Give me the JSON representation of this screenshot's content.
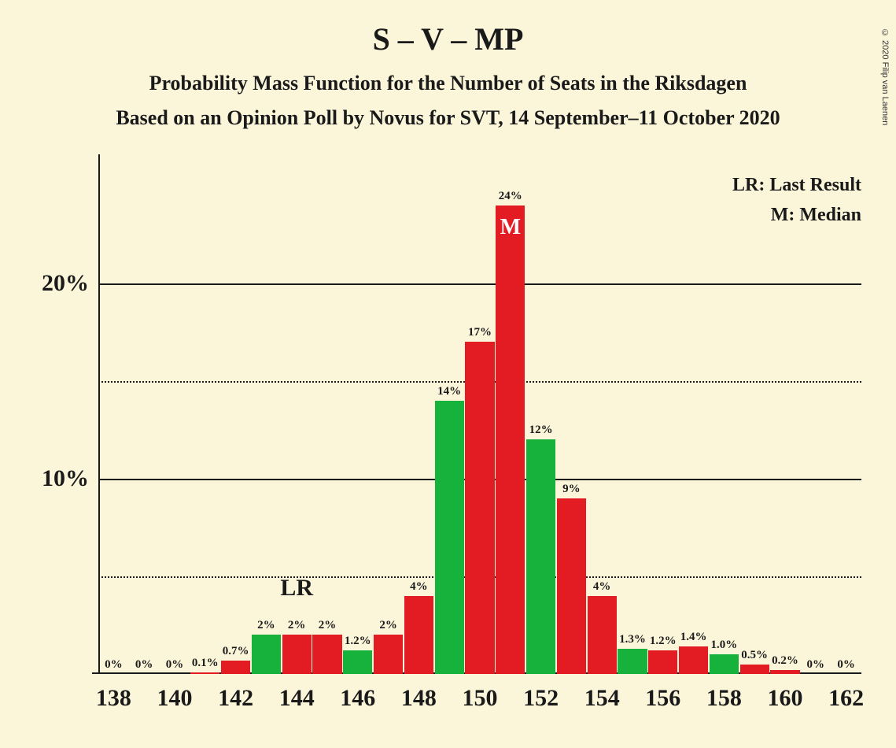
{
  "title": "S – V – MP",
  "subtitle1": "Probability Mass Function for the Number of Seats in the Riksdagen",
  "subtitle2": "Based on an Opinion Poll by Novus for SVT, 14 September–11 October 2020",
  "copyright": "© 2020 Filip van Laenen",
  "legend": {
    "lr": "LR: Last Result",
    "m": "M: Median"
  },
  "title_fontsize": 40,
  "subtitle_fontsize": 26,
  "background_color": "#fbf6da",
  "text_color": "#1a1a1a",
  "chart": {
    "type": "bar",
    "y": {
      "max": 25,
      "ticks": [
        {
          "value": 10,
          "label": "10%",
          "style": "solid"
        },
        {
          "value": 20,
          "label": "20%",
          "style": "solid"
        },
        {
          "value": 5,
          "label": "",
          "style": "dotted"
        },
        {
          "value": 15,
          "label": "",
          "style": "dotted"
        }
      ]
    },
    "x_ticks": [
      "138",
      "140",
      "142",
      "144",
      "146",
      "148",
      "150",
      "152",
      "154",
      "156",
      "158",
      "160",
      "162"
    ],
    "bar_width_ratio": 0.96,
    "colors": {
      "red": "#e31b23",
      "green": "#17b23b"
    },
    "lr_marker": {
      "x": 144,
      "label": "LR"
    },
    "median_marker": {
      "x": 151,
      "label": "M"
    },
    "bars": [
      {
        "x": 138,
        "value": 0,
        "label": "0%",
        "color": "green"
      },
      {
        "x": 139,
        "value": 0,
        "label": "0%",
        "color": "red"
      },
      {
        "x": 140,
        "value": 0,
        "label": "0%",
        "color": "green"
      },
      {
        "x": 141,
        "value": 0.1,
        "label": "0.1%",
        "color": "red"
      },
      {
        "x": 142,
        "value": 0.7,
        "label": "0.7%",
        "color": "red"
      },
      {
        "x": 143,
        "value": 2,
        "label": "2%",
        "color": "green"
      },
      {
        "x": 144,
        "value": 2,
        "label": "2%",
        "color": "red"
      },
      {
        "x": 145,
        "value": 2,
        "label": "2%",
        "color": "red"
      },
      {
        "x": 146,
        "value": 1.2,
        "label": "1.2%",
        "color": "green"
      },
      {
        "x": 147,
        "value": 2,
        "label": "2%",
        "color": "red"
      },
      {
        "x": 148,
        "value": 4,
        "label": "4%",
        "color": "red"
      },
      {
        "x": 149,
        "value": 14,
        "label": "14%",
        "color": "green"
      },
      {
        "x": 150,
        "value": 17,
        "label": "17%",
        "color": "red"
      },
      {
        "x": 151,
        "value": 24,
        "label": "24%",
        "color": "red"
      },
      {
        "x": 152,
        "value": 12,
        "label": "12%",
        "color": "green"
      },
      {
        "x": 153,
        "value": 9,
        "label": "9%",
        "color": "red"
      },
      {
        "x": 154,
        "value": 4,
        "label": "4%",
        "color": "red"
      },
      {
        "x": 155,
        "value": 1.3,
        "label": "1.3%",
        "color": "green"
      },
      {
        "x": 156,
        "value": 1.2,
        "label": "1.2%",
        "color": "red"
      },
      {
        "x": 157,
        "value": 1.4,
        "label": "1.4%",
        "color": "red"
      },
      {
        "x": 158,
        "value": 1.0,
        "label": "1.0%",
        "color": "green"
      },
      {
        "x": 159,
        "value": 0.5,
        "label": "0.5%",
        "color": "red"
      },
      {
        "x": 160,
        "value": 0.2,
        "label": "0.2%",
        "color": "red"
      },
      {
        "x": 161,
        "value": 0,
        "label": "0%",
        "color": "green"
      },
      {
        "x": 162,
        "value": 0,
        "label": "0%",
        "color": "red"
      }
    ]
  }
}
